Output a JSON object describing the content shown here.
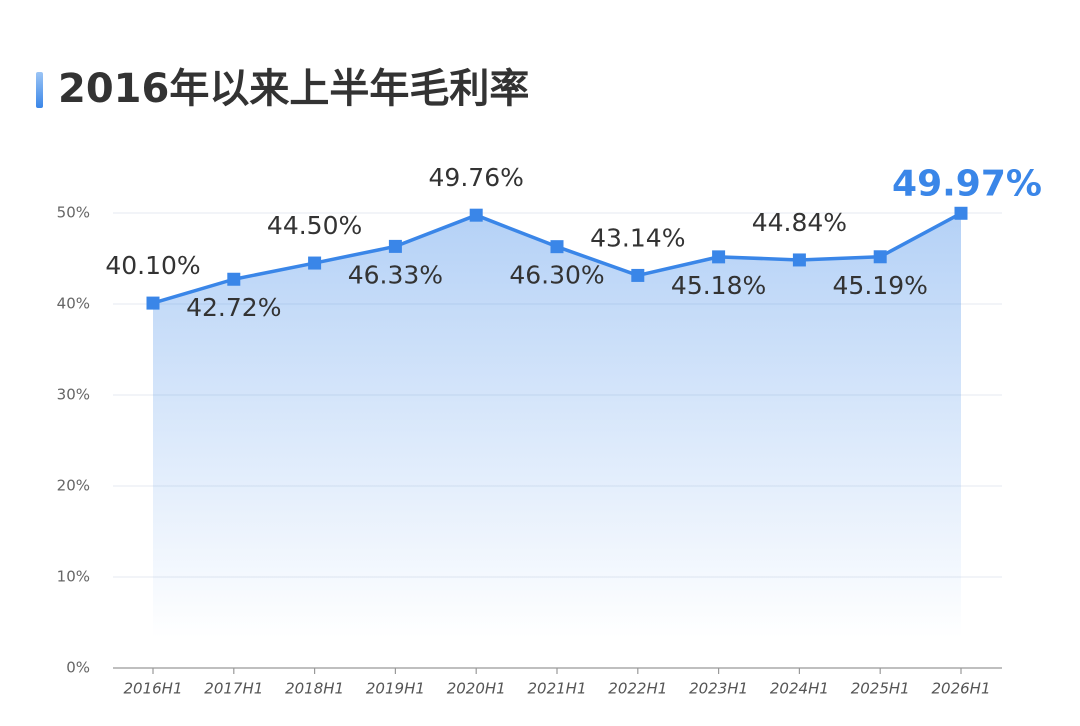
{
  "chart_data": {
    "type": "line",
    "title": "2016年以来上半年毛利率",
    "categories": [
      "2016H1",
      "2017H1",
      "2018H1",
      "2019H1",
      "2020H1",
      "2021H1",
      "2022H1",
      "2023H1",
      "2024H1",
      "2025H1",
      "2026H1"
    ],
    "series": [
      {
        "color": "#3a86e8",
        "values": [
          40.1,
          42.72,
          44.5,
          46.33,
          49.76,
          46.3,
          43.14,
          45.18,
          44.84,
          45.19,
          49.97
        ],
        "value_labels": [
          "40.10%",
          "42.72%",
          "44.50%",
          "46.33%",
          "49.76%",
          "46.30%",
          "43.14%",
          "45.18%",
          "44.84%",
          "45.19%",
          "49.97%"
        ]
      }
    ],
    "ylim": [
      0,
      50
    ],
    "yticks": [
      {
        "value": 0,
        "label": "0%"
      },
      {
        "value": 10,
        "label": "10%"
      },
      {
        "value": 20,
        "label": "20%"
      },
      {
        "value": 30,
        "label": "30%"
      },
      {
        "value": 40,
        "label": "40%"
      },
      {
        "value": 50,
        "label": "50%"
      }
    ],
    "grid": true
  }
}
